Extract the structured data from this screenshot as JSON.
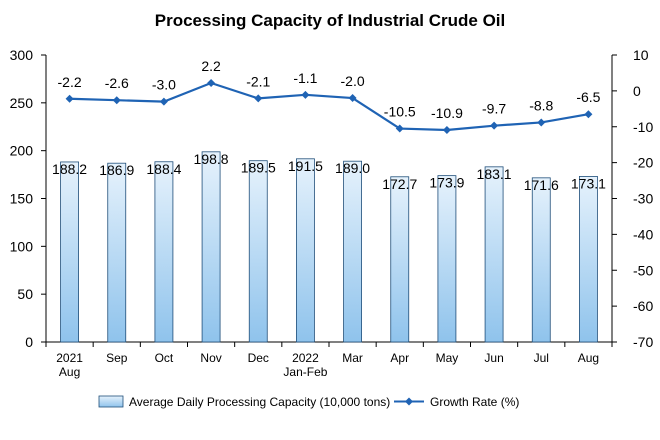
{
  "chart_data": {
    "type": "bar+line",
    "title": "Processing Capacity of Industrial Crude Oil",
    "categories": [
      [
        "2021",
        "Aug"
      ],
      [
        "Sep"
      ],
      [
        "Oct"
      ],
      [
        "Nov"
      ],
      [
        "Dec"
      ],
      [
        "2022",
        "Jan-Feb"
      ],
      [
        "Mar"
      ],
      [
        "Apr"
      ],
      [
        "May"
      ],
      [
        "Jun"
      ],
      [
        "Jul"
      ],
      [
        "Aug"
      ]
    ],
    "series": [
      {
        "name": "Average Daily Processing Capacity (10,000 tons)",
        "type": "bar",
        "axis": "left",
        "values": [
          188.2,
          186.9,
          188.4,
          198.8,
          189.5,
          191.5,
          189.0,
          172.7,
          173.9,
          183.1,
          171.6,
          173.1
        ],
        "labels": [
          "188.2",
          "186.9",
          "188.4",
          "198.8",
          "189.5",
          "191.5",
          "189.0",
          "172.7",
          "173.9",
          "183.1",
          "171.6",
          "173.1"
        ]
      },
      {
        "name": "Growth Rate (%)",
        "type": "line",
        "axis": "right",
        "values": [
          -2.2,
          -2.6,
          -3.0,
          2.2,
          -2.1,
          -1.1,
          -2.0,
          -10.5,
          -10.9,
          -9.7,
          -8.8,
          -6.5
        ],
        "labels": [
          "-2.2",
          "-2.6",
          "-3.0",
          "2.2",
          "-2.1",
          "-1.1",
          "-2.0",
          "-10.5",
          "-10.9",
          "-9.7",
          "-8.8",
          "-6.5"
        ]
      }
    ],
    "y_left": {
      "ylim": [
        0,
        300
      ],
      "ticks": [
        0,
        50,
        100,
        150,
        200,
        250,
        300
      ]
    },
    "y_right": {
      "ylim": [
        -70,
        10
      ],
      "ticks": [
        10,
        0,
        -10,
        -20,
        -30,
        -40,
        -50,
        -60,
        -70
      ]
    },
    "grid": false,
    "legend_position": "bottom",
    "colors": {
      "bar_fill_top": "#e6f2fc",
      "bar_fill_bottom": "#8fc3ec",
      "bar_stroke": "#1f4e79",
      "line": "#1f63b4",
      "axis": "#000000"
    }
  }
}
